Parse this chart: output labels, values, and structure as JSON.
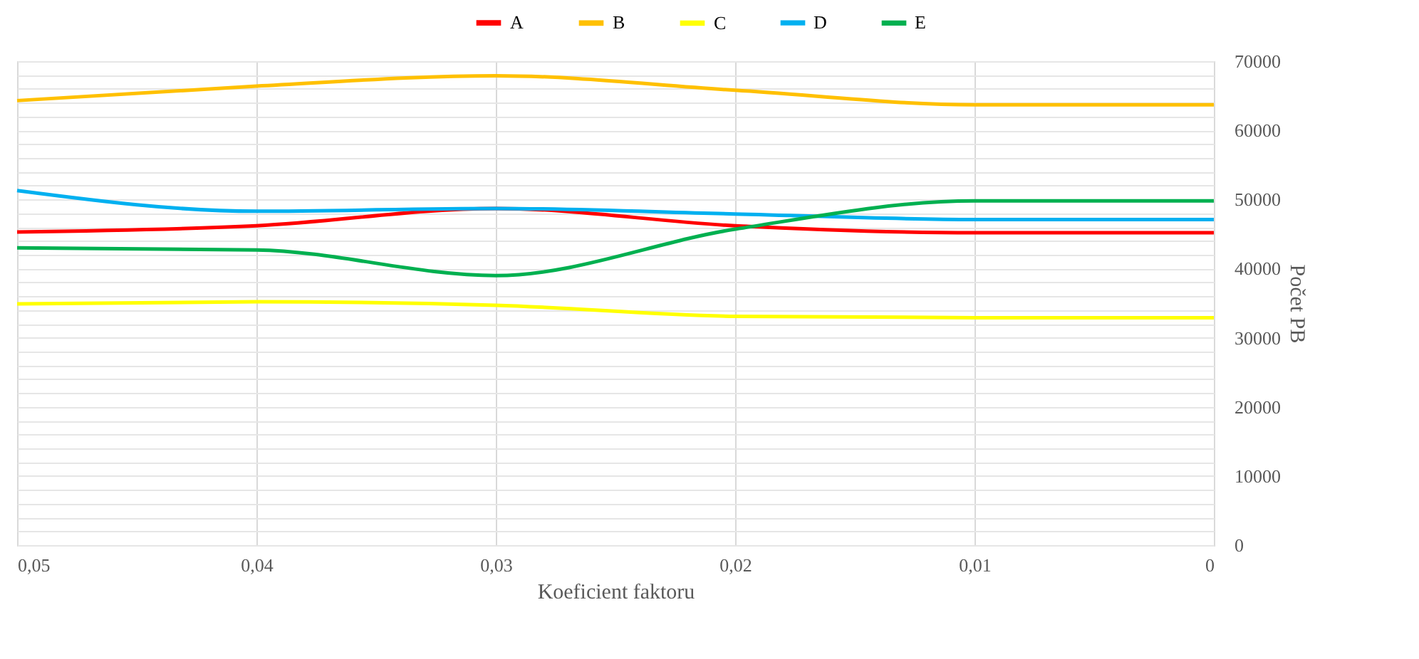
{
  "chart_data": {
    "type": "line",
    "xlabel": "Koeficient faktoru",
    "y2label": "Počet PB",
    "x": [
      0.05,
      0.04,
      0.03,
      0.02,
      0.01,
      0
    ],
    "series": [
      {
        "name": "A",
        "color": "#ff0000",
        "axis": "y2",
        "values": [
          45300,
          46200,
          48700,
          46200,
          45200,
          45200
        ]
      },
      {
        "name": "B",
        "color": "#ffc000",
        "axis": "y2",
        "values": [
          64300,
          66400,
          67900,
          65800,
          63700,
          63700
        ]
      },
      {
        "name": "C",
        "color": "#ffff00",
        "axis": "y2",
        "values": [
          34900,
          35200,
          34700,
          33100,
          32900,
          32900
        ]
      },
      {
        "name": "D",
        "color": "#00b0f0",
        "axis": "y2",
        "values": [
          51300,
          48300,
          48700,
          47900,
          47100,
          47100
        ]
      },
      {
        "name": "E",
        "color": "#00b050",
        "axis": "y2",
        "values": [
          43000,
          42700,
          39000,
          45700,
          49800,
          49800
        ]
      }
    ],
    "xlim": [
      0.05,
      0
    ],
    "xticks": [
      {
        "value": 0.05,
        "label": "0,05"
      },
      {
        "value": 0.04,
        "label": "0,04"
      },
      {
        "value": 0.03,
        "label": "0,03"
      },
      {
        "value": 0.02,
        "label": "0,02"
      },
      {
        "value": 0.01,
        "label": "0,01"
      },
      0
    ],
    "y2lim": [
      0,
      70000
    ],
    "y2ticks": [
      0,
      {
        "value": 2000,
        "label": null
      },
      {
        "value": 4000,
        "label": null
      },
      {
        "value": 6000,
        "label": null
      },
      {
        "value": 8000,
        "label": null
      },
      10000,
      {
        "value": 12000,
        "label": null
      },
      {
        "value": 14000,
        "label": null
      },
      {
        "value": 16000,
        "label": null
      },
      {
        "value": 18000,
        "label": null
      },
      20000,
      {
        "value": 22000,
        "label": null
      },
      {
        "value": 24000,
        "label": null
      },
      {
        "value": 26000,
        "label": null
      },
      {
        "value": 28000,
        "label": null
      },
      30000,
      {
        "value": 32000,
        "label": null
      },
      {
        "value": 34000,
        "label": null
      },
      {
        "value": 36000,
        "label": null
      },
      {
        "value": 38000,
        "label": null
      },
      40000,
      {
        "value": 42000,
        "label": null
      },
      {
        "value": 44000,
        "label": null
      },
      {
        "value": 46000,
        "label": null
      },
      {
        "value": 48000,
        "label": null
      },
      50000,
      {
        "value": 52000,
        "label": null
      },
      {
        "value": 54000,
        "label": null
      },
      {
        "value": 56000,
        "label": null
      },
      {
        "value": 58000,
        "label": null
      },
      60000,
      {
        "value": 62000,
        "label": null
      },
      {
        "value": 64000,
        "label": null
      },
      {
        "value": 66000,
        "label": null
      },
      {
        "value": 68000,
        "label": null
      },
      70000
    ],
    "grid": true,
    "legend": "top",
    "marker": "none",
    "line_style": "solid"
  }
}
